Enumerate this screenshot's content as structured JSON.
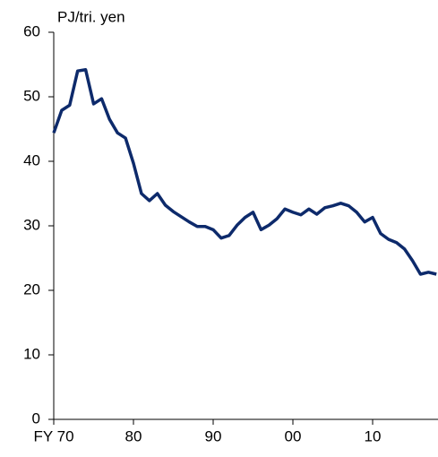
{
  "chart_data": {
    "type": "line",
    "y_unit_label": "PJ/tri. yen",
    "x": [
      1970,
      1971,
      1972,
      1973,
      1974,
      1975,
      1976,
      1977,
      1978,
      1979,
      1980,
      1981,
      1982,
      1983,
      1984,
      1985,
      1986,
      1987,
      1988,
      1989,
      1990,
      1991,
      1992,
      1993,
      1994,
      1995,
      1996,
      1997,
      1998,
      1999,
      2000,
      2001,
      2002,
      2003,
      2004,
      2005,
      2006,
      2007,
      2008,
      2009,
      2010,
      2011,
      2012,
      2013,
      2014,
      2015,
      2016,
      2017,
      2018
    ],
    "series": [
      {
        "color": "#0d2a6b",
        "values": [
          44.4,
          47.9,
          48.7,
          54.0,
          54.2,
          48.9,
          49.7,
          46.5,
          44.4,
          43.6,
          39.7,
          35.0,
          33.9,
          35.0,
          33.2,
          32.2,
          31.4,
          30.6,
          29.9,
          29.9,
          29.4,
          28.1,
          28.5,
          30.1,
          31.3,
          32.1,
          29.4,
          30.1,
          31.1,
          32.6,
          32.1,
          31.7,
          32.6,
          31.8,
          32.8,
          33.1,
          33.5,
          33.1,
          32.1,
          30.6,
          31.3,
          28.8,
          27.9,
          27.4,
          26.4,
          24.6,
          22.5,
          22.8,
          22.5
        ]
      }
    ],
    "xlim": [
      1970,
      2018.2
    ],
    "xticks": [
      {
        "value": 1970,
        "label": "FY 70"
      },
      {
        "value": 1980,
        "label": "80"
      },
      {
        "value": 1990,
        "label": "90"
      },
      {
        "value": 2000,
        "label": "00"
      },
      {
        "value": 2010,
        "label": "10"
      }
    ],
    "ylim": [
      0,
      60
    ],
    "yticks": [
      0,
      10,
      20,
      30,
      40,
      50,
      60
    ],
    "grid": false
  }
}
